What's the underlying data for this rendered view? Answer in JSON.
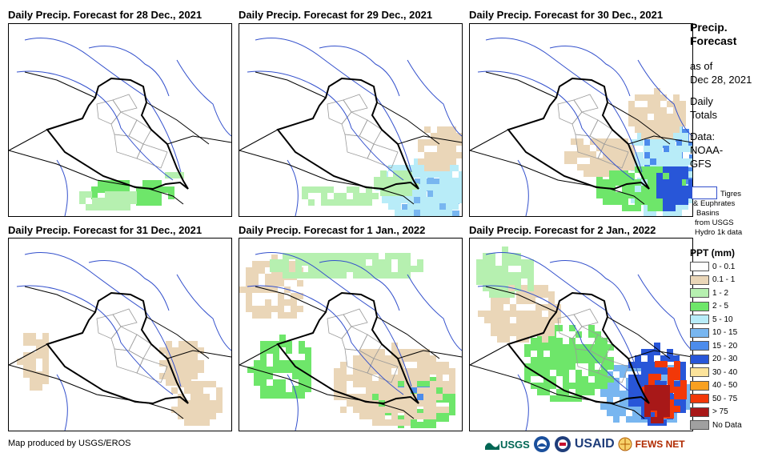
{
  "panels": [
    {
      "title": "Daily Precip. Forecast for 28 Dec., 2021"
    },
    {
      "title": "Daily Precip. Forecast for 29 Dec., 2021"
    },
    {
      "title": "Daily Precip. Forecast for 30 Dec., 2021"
    },
    {
      "title": "Daily Precip. Forecast for 31 Dec., 2021"
    },
    {
      "title": "Daily Precip. Forecast for 1 Jan., 2022"
    },
    {
      "title": "Daily Precip. Forecast for 2 Jan., 2022"
    }
  ],
  "legend": {
    "title_line1": "Precip.",
    "title_line2": "Forecast",
    "asof_line1": "as of",
    "asof_line2": "Dec 28, 2021",
    "daily_line1": "Daily",
    "daily_line2": "Totals",
    "data_line1": "Data:",
    "data_line2": "NOAA-",
    "data_line3": "GFS",
    "basin_line1": "Tigres",
    "basin_line2": "& Euphrates",
    "basin_line3": "Basins",
    "basin_line4": "from USGS",
    "basin_line5": "Hydro 1k data",
    "ppt_title": "PPT (mm)",
    "classes": [
      {
        "label": "0 - 0.1",
        "color": "#ffffff"
      },
      {
        "label": "0.1 - 1",
        "color": "#ead6b8"
      },
      {
        "label": "1 - 2",
        "color": "#b6f0b0"
      },
      {
        "label": "2 - 5",
        "color": "#6ee66a"
      },
      {
        "label": "5 - 10",
        "color": "#b8ecf8"
      },
      {
        "label": "10 - 15",
        "color": "#78b6f0"
      },
      {
        "label": "15 - 20",
        "color": "#4c8cec"
      },
      {
        "label": "20 - 30",
        "color": "#2856d8"
      },
      {
        "label": "30 - 40",
        "color": "#fce39a"
      },
      {
        "label": "40 - 50",
        "color": "#f8a020"
      },
      {
        "label": "50 - 75",
        "color": "#f23808"
      },
      {
        "label": "> 75",
        "color": "#a81818"
      },
      {
        "label": "No Data",
        "color": "#a0a0a0"
      }
    ]
  },
  "credit": "Map produced by USGS/EROS",
  "logos": {
    "usgs": "USGS",
    "usaid": "USAID",
    "fews": "FEWS NET"
  }
}
